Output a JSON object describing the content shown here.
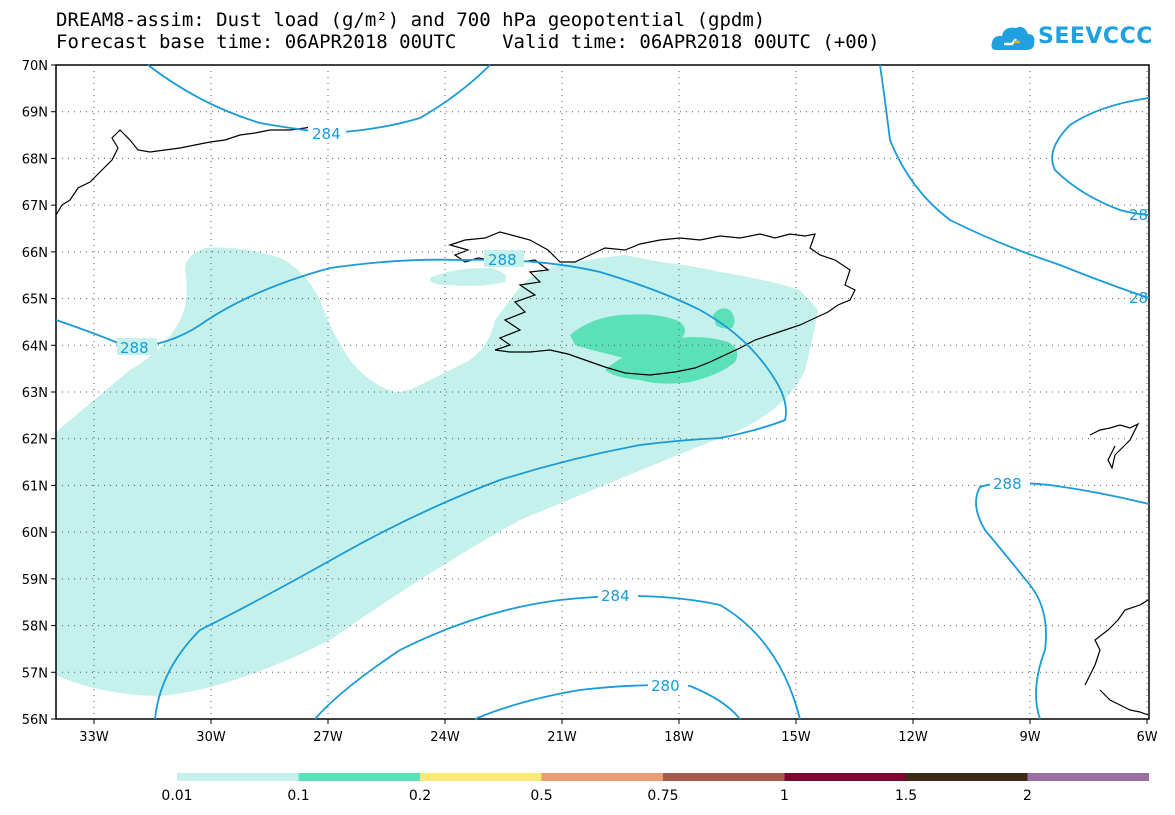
{
  "title": {
    "line1": "DREAM8-assim: Dust load (g/m²) and 700 hPa geopotential (gpdm)",
    "line2": "Forecast base time: 06APR2018 00UTC    Valid time: 06APR2018 00UTC (+00)"
  },
  "logo": {
    "text": "SEEVCCC",
    "icon": "cloud-icon",
    "color": "#1fa0e0"
  },
  "axes": {
    "lat_labels": [
      "70N",
      "69N",
      "68N",
      "67N",
      "66N",
      "65N",
      "64N",
      "63N",
      "62N",
      "61N",
      "60N",
      "59N",
      "58N",
      "57N",
      "56N"
    ],
    "lon_labels": [
      "33W",
      "30W",
      "27W",
      "24W",
      "21W",
      "18W",
      "15W",
      "12W",
      "9W",
      "6W"
    ]
  },
  "contour_labels": [
    "284",
    "288",
    "288",
    "288",
    "284",
    "280",
    "28",
    "28"
  ],
  "colorbar": {
    "labels": [
      "0.01",
      "0.1",
      "0.2",
      "0.5",
      "0.75",
      "1",
      "1.5",
      "2"
    ],
    "colors": [
      "#c4f1eb",
      "#5ce0b8",
      "#f8e87a",
      "#ec9c72",
      "#a85a4a",
      "#7a0a32",
      "#3c2a16",
      "#9a70a4"
    ]
  },
  "colors": {
    "contour": "#1a9bd8",
    "dust_low": "#c4f1eb",
    "dust_mid": "#5ce0b8",
    "coast": "#000000"
  }
}
